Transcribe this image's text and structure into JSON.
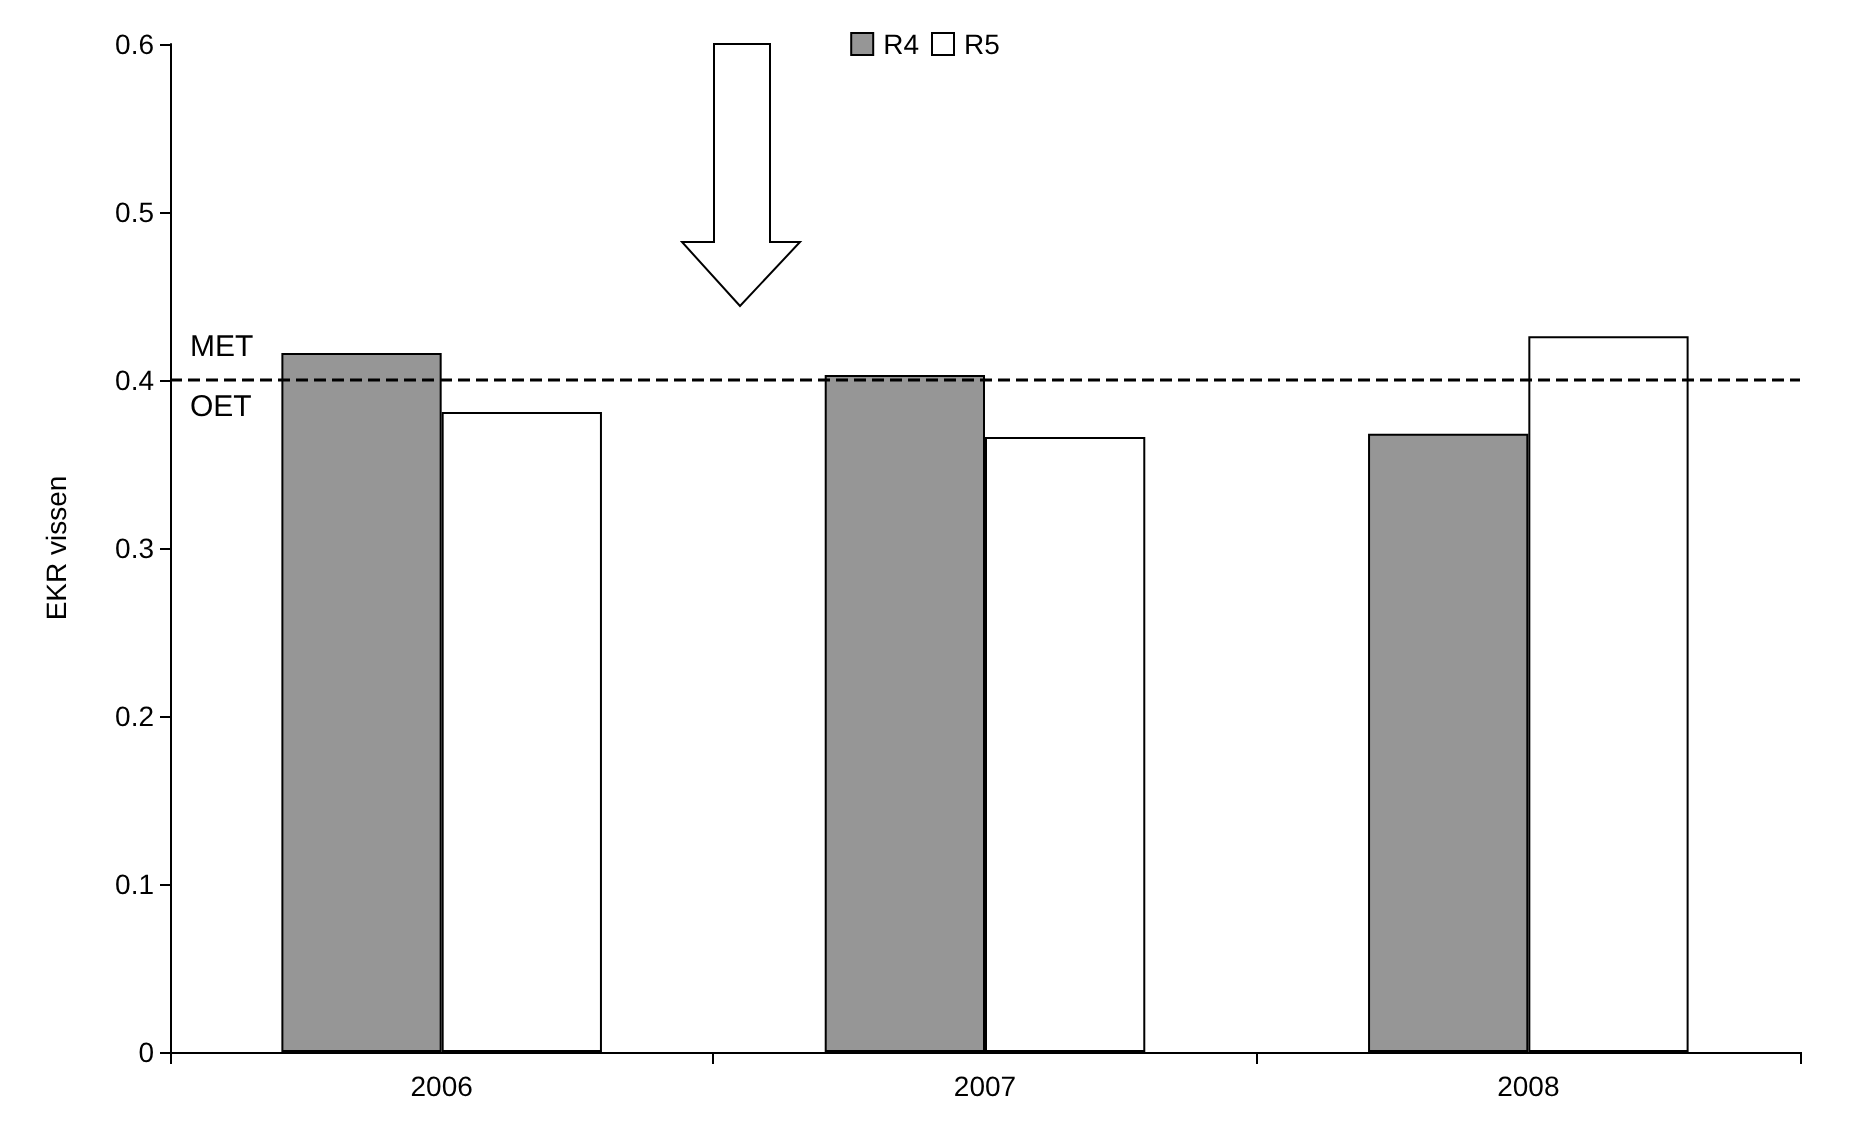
{
  "chart_data": {
    "type": "bar",
    "ylabel": "EKR vissen",
    "categories": [
      "2006",
      "2007",
      "2008"
    ],
    "series": [
      {
        "name": "R4",
        "color": "#969696",
        "values": [
          0.416,
          0.403,
          0.368
        ]
      },
      {
        "name": "R5",
        "color": "#ffffff",
        "values": [
          0.381,
          0.366,
          0.426
        ]
      }
    ],
    "ylim": [
      0,
      0.6
    ],
    "yticks": [
      0,
      0.1,
      0.2,
      0.3,
      0.4,
      0.5,
      0.6
    ],
    "grid": false,
    "legend": "top",
    "ref_lines": [
      {
        "axis": "y",
        "value": 0.4,
        "line_style": "dashed",
        "color": "#000000"
      }
    ],
    "annotations": [
      {
        "text": "MET",
        "y": 0.4
      },
      {
        "text": "OET",
        "y": 0.4
      }
    ]
  }
}
